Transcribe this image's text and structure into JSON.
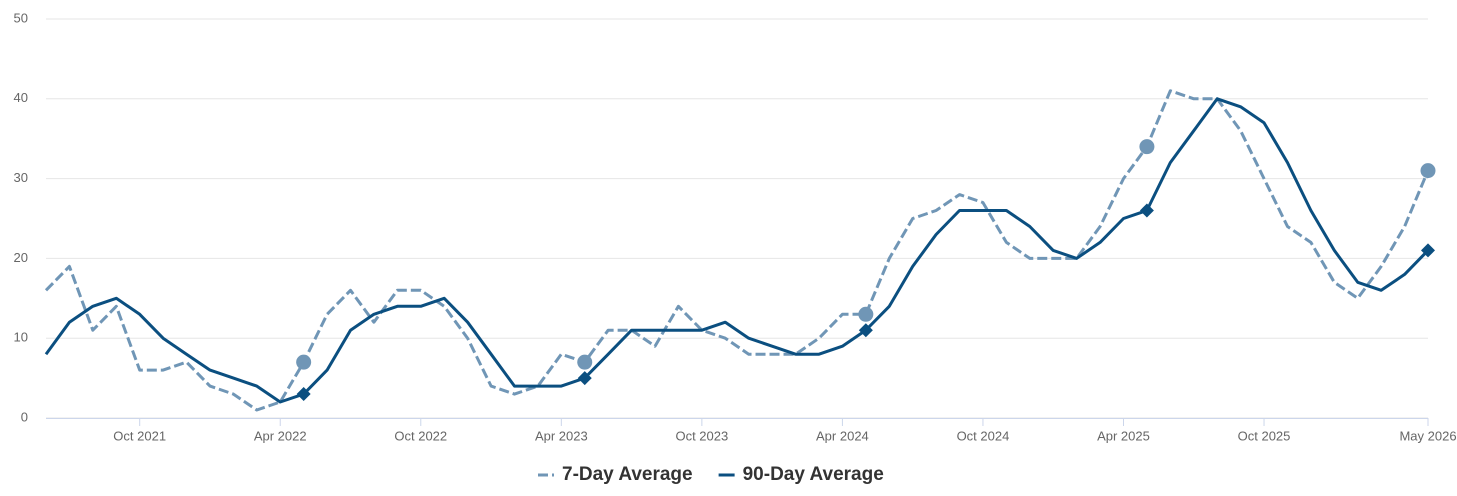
{
  "chart_data": {
    "type": "line",
    "x": [
      "2021-06",
      "2021-07",
      "2021-08",
      "2021-09",
      "2021-10",
      "2021-11",
      "2021-12",
      "2022-01",
      "2022-02",
      "2022-03",
      "2022-04",
      "2022-05",
      "2022-06",
      "2022-07",
      "2022-08",
      "2022-09",
      "2022-10",
      "2022-11",
      "2022-12",
      "2023-01",
      "2023-02",
      "2023-03",
      "2023-04",
      "2023-05",
      "2023-06",
      "2023-07",
      "2023-08",
      "2023-09",
      "2023-10",
      "2023-11",
      "2023-12",
      "2024-01",
      "2024-02",
      "2024-03",
      "2024-04",
      "2024-05",
      "2024-06",
      "2024-07",
      "2024-08",
      "2024-09",
      "2024-10",
      "2024-11",
      "2024-12",
      "2025-01",
      "2025-02",
      "2025-03",
      "2025-04",
      "2025-05",
      "2025-06",
      "2025-07",
      "2025-08",
      "2025-09",
      "2025-10",
      "2025-11",
      "2025-12",
      "2026-01",
      "2026-02",
      "2026-03",
      "2026-04",
      "2026-05"
    ],
    "series": [
      {
        "name": "7-Day Average",
        "color": "#7096b6",
        "dashed": true,
        "marker": "circle",
        "values": [
          16,
          19,
          11,
          14,
          6,
          6,
          7,
          4,
          3,
          1,
          2,
          7,
          13,
          16,
          12,
          16,
          16,
          14,
          10,
          4,
          3,
          4,
          8,
          7,
          11,
          11,
          9,
          14,
          11,
          10,
          8,
          8,
          8,
          10,
          13,
          13,
          20,
          25,
          26,
          28,
          27,
          22,
          20,
          20,
          20,
          24,
          30,
          34,
          41,
          40,
          40,
          36,
          30,
          24,
          22,
          17,
          15,
          19,
          24,
          31
        ]
      },
      {
        "name": "90-Day Average",
        "color": "#0b4f80",
        "dashed": false,
        "marker": "diamond",
        "values": [
          8,
          12,
          14,
          15,
          13,
          10,
          8,
          6,
          5,
          4,
          2,
          3,
          6,
          11,
          13,
          14,
          14,
          15,
          12,
          8,
          4,
          4,
          4,
          5,
          8,
          11,
          11,
          11,
          11,
          12,
          10,
          9,
          8,
          8,
          9,
          11,
          14,
          19,
          23,
          26,
          26,
          26,
          24,
          21,
          20,
          22,
          25,
          26,
          32,
          36,
          40,
          39,
          37,
          32,
          26,
          21,
          17,
          16,
          18,
          21
        ]
      }
    ],
    "markers_at": [
      "2022-05",
      "2023-05",
      "2024-05",
      "2025-05",
      "2026-05"
    ],
    "xlim": [
      "2021-06",
      "2026-05"
    ],
    "xticks": [
      {
        "value": "2021-10",
        "label": "Oct 2021"
      },
      {
        "value": "2022-04",
        "label": "Apr 2022"
      },
      {
        "value": "2022-10",
        "label": "Oct 2022"
      },
      {
        "value": "2023-04",
        "label": "Apr 2023"
      },
      {
        "value": "2023-10",
        "label": "Oct 2023"
      },
      {
        "value": "2024-04",
        "label": "Apr 2024"
      },
      {
        "value": "2024-10",
        "label": "Oct 2024"
      },
      {
        "value": "2025-04",
        "label": "Apr 2025"
      },
      {
        "value": "2025-10",
        "label": "Oct 2025"
      },
      {
        "value": "2026-05",
        "label": "May 2026"
      }
    ],
    "ylim": [
      0,
      50
    ],
    "yticks": [
      0,
      10,
      20,
      30,
      40,
      50
    ],
    "grid": true,
    "legend": "bottom"
  }
}
